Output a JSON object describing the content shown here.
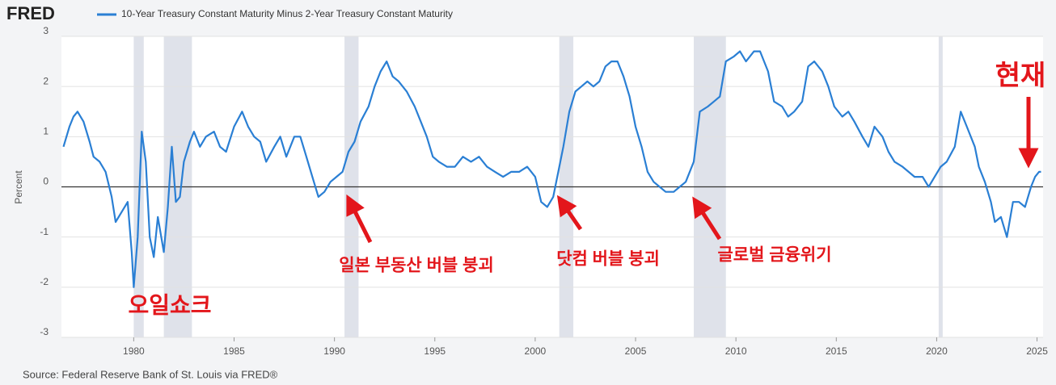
{
  "chart_data": {
    "type": "line",
    "logo": "FRED",
    "y_label": "Percent",
    "source": "Source: Federal Reserve Bank of St. Louis via FRED®",
    "annotations": [
      "오일쇼크",
      "일본 부동산 버블 붕괴",
      "닷컴 버블 붕괴",
      "글로벌 금융위기",
      "현재"
    ],
    "xlim": [
      1976.4,
      2025.3
    ],
    "xticks": [
      1980,
      1985,
      1990,
      1995,
      2000,
      2005,
      2010,
      2015,
      2020,
      2025
    ],
    "ylim": [
      -3,
      3
    ],
    "yticks": [
      -3,
      -2,
      -1,
      0,
      1,
      2,
      3
    ],
    "grid": true,
    "recessions": [
      [
        1980.0,
        1980.5
      ],
      [
        1981.5,
        1982.9
      ],
      [
        1990.5,
        1991.2
      ],
      [
        2001.2,
        2001.9
      ],
      [
        2007.9,
        2009.5
      ],
      [
        2020.1,
        2020.3
      ]
    ],
    "recession_color": "#dfe2ea",
    "x": [
      1976.5,
      1976.8,
      1977.0,
      1977.2,
      1977.5,
      1977.8,
      1978.0,
      1978.3,
      1978.6,
      1978.9,
      1979.1,
      1979.4,
      1979.7,
      1979.9,
      1980.0,
      1980.2,
      1980.4,
      1980.6,
      1980.8,
      1981.0,
      1981.2,
      1981.5,
      1981.7,
      1981.9,
      1982.1,
      1982.3,
      1982.5,
      1982.8,
      1983.0,
      1983.3,
      1983.6,
      1984.0,
      1984.3,
      1984.6,
      1985.0,
      1985.4,
      1985.7,
      1986.0,
      1986.3,
      1986.6,
      1987.0,
      1987.3,
      1987.6,
      1988.0,
      1988.3,
      1988.6,
      1988.9,
      1989.2,
      1989.5,
      1989.8,
      1990.1,
      1990.4,
      1990.7,
      1991.0,
      1991.3,
      1991.7,
      1992.0,
      1992.3,
      1992.6,
      1992.9,
      1993.2,
      1993.6,
      1994.0,
      1994.3,
      1994.6,
      1994.9,
      1995.2,
      1995.6,
      1996.0,
      1996.4,
      1996.8,
      1997.2,
      1997.6,
      1998.0,
      1998.4,
      1998.8,
      1999.2,
      1999.6,
      2000.0,
      2000.3,
      2000.6,
      2000.9,
      2001.1,
      2001.4,
      2001.7,
      2002.0,
      2002.3,
      2002.6,
      2002.9,
      2003.2,
      2003.5,
      2003.8,
      2004.1,
      2004.4,
      2004.7,
      2005.0,
      2005.3,
      2005.6,
      2005.9,
      2006.2,
      2006.5,
      2006.9,
      2007.2,
      2007.5,
      2007.9,
      2008.2,
      2008.6,
      2008.9,
      2009.2,
      2009.5,
      2009.9,
      2010.2,
      2010.5,
      2010.9,
      2011.2,
      2011.6,
      2011.9,
      2012.3,
      2012.6,
      2012.9,
      2013.3,
      2013.6,
      2013.9,
      2014.3,
      2014.6,
      2014.9,
      2015.3,
      2015.6,
      2015.9,
      2016.3,
      2016.6,
      2016.9,
      2017.3,
      2017.6,
      2017.9,
      2018.3,
      2018.6,
      2018.9,
      2019.3,
      2019.6,
      2019.9,
      2020.2,
      2020.5,
      2020.9,
      2021.2,
      2021.5,
      2021.9,
      2022.1,
      2022.4,
      2022.7,
      2022.9,
      2023.2,
      2023.5,
      2023.8,
      2024.1,
      2024.4,
      2024.7,
      2024.9,
      2025.1,
      2025.2
    ],
    "series": [
      {
        "name": "10-Year Treasury Constant Maturity Minus 2-Year Treasury Constant Maturity",
        "color": "#2a7fd4",
        "values": [
          0.8,
          1.2,
          1.4,
          1.5,
          1.3,
          0.9,
          0.6,
          0.5,
          0.3,
          -0.2,
          -0.7,
          -0.5,
          -0.3,
          -1.3,
          -2.0,
          -1.0,
          1.1,
          0.5,
          -1.0,
          -1.4,
          -0.6,
          -1.3,
          -0.4,
          0.8,
          -0.3,
          -0.2,
          0.5,
          0.9,
          1.1,
          0.8,
          1.0,
          1.1,
          0.8,
          0.7,
          1.2,
          1.5,
          1.2,
          1.0,
          0.9,
          0.5,
          0.8,
          1.0,
          0.6,
          1.0,
          1.0,
          0.6,
          0.2,
          -0.2,
          -0.1,
          0.1,
          0.2,
          0.3,
          0.7,
          0.9,
          1.3,
          1.6,
          2.0,
          2.3,
          2.5,
          2.2,
          2.1,
          1.9,
          1.6,
          1.3,
          1.0,
          0.6,
          0.5,
          0.4,
          0.4,
          0.6,
          0.5,
          0.6,
          0.4,
          0.3,
          0.2,
          0.3,
          0.3,
          0.4,
          0.2,
          -0.3,
          -0.4,
          -0.2,
          0.2,
          0.8,
          1.5,
          1.9,
          2.0,
          2.1,
          2.0,
          2.1,
          2.4,
          2.5,
          2.5,
          2.2,
          1.8,
          1.2,
          0.8,
          0.3,
          0.1,
          0.0,
          -0.1,
          -0.1,
          0.0,
          0.1,
          0.5,
          1.5,
          1.6,
          1.7,
          1.8,
          2.5,
          2.6,
          2.7,
          2.5,
          2.7,
          2.7,
          2.3,
          1.7,
          1.6,
          1.4,
          1.5,
          1.7,
          2.4,
          2.5,
          2.3,
          2.0,
          1.6,
          1.4,
          1.5,
          1.3,
          1.0,
          0.8,
          1.2,
          1.0,
          0.7,
          0.5,
          0.4,
          0.3,
          0.2,
          0.2,
          0.0,
          0.2,
          0.4,
          0.5,
          0.8,
          1.5,
          1.2,
          0.8,
          0.4,
          0.1,
          -0.3,
          -0.7,
          -0.6,
          -1.0,
          -0.3,
          -0.3,
          -0.4,
          0.0,
          0.2,
          0.3,
          0.3
        ]
      }
    ]
  }
}
